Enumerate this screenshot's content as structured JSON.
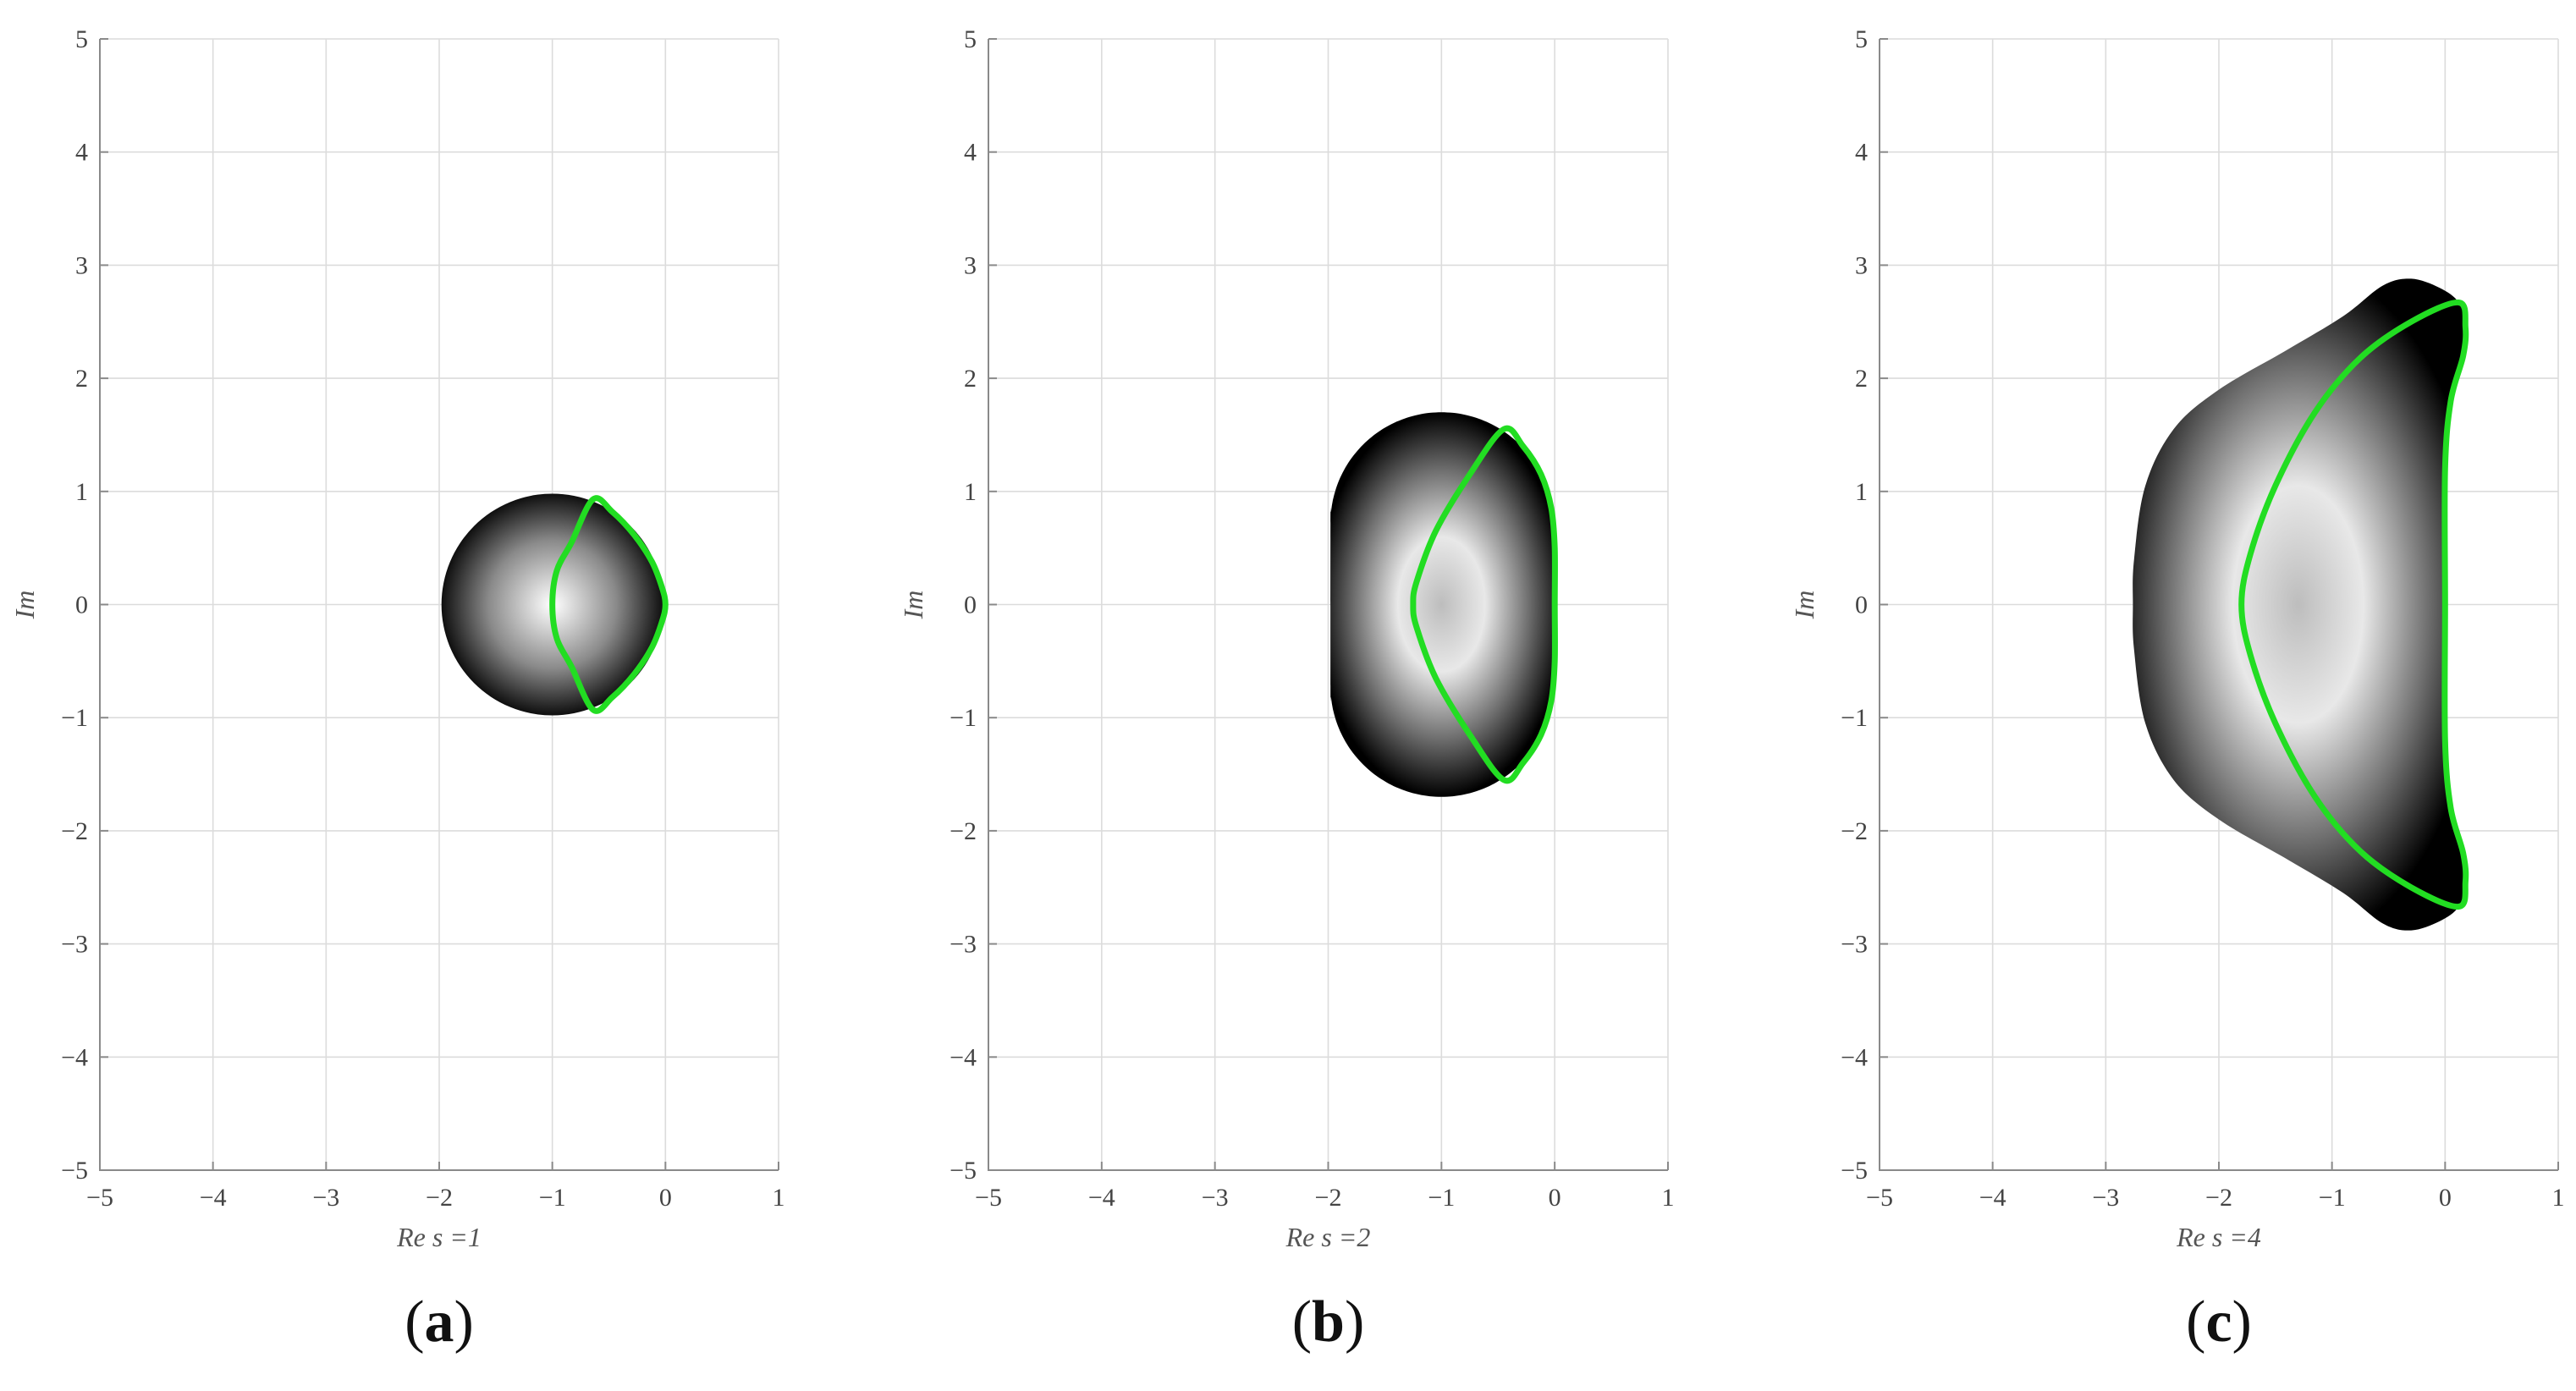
{
  "colors": {
    "curve": "#22dd22",
    "region_dark": "#000000",
    "region_light": "#ffffff",
    "grid": "#dcdcdc"
  },
  "chart_data": [
    {
      "type": "line",
      "panel_label": "a",
      "xlabel": "Re s =1",
      "ylabel": "Im",
      "xlim": [
        -5,
        1
      ],
      "ylim": [
        -5,
        5
      ],
      "xticks": [
        -5,
        -4,
        -3,
        -2,
        -1,
        0,
        1
      ],
      "yticks": [
        -5,
        -4,
        -3,
        -2,
        -1,
        0,
        1,
        2,
        3,
        4,
        5
      ],
      "grid": true,
      "shaded_region": {
        "shape": "disk",
        "center": [
          -1,
          0
        ],
        "radius": 0.98
      },
      "series": [
        {
          "values": [
            [
              -0.64,
              0.93
            ],
            [
              -0.47,
              0.82
            ],
            [
              -0.28,
              0.62
            ],
            [
              -0.12,
              0.38
            ],
            [
              -0.03,
              0.15
            ],
            [
              0.0,
              0.0
            ],
            [
              -0.03,
              -0.15
            ],
            [
              -0.12,
              -0.38
            ],
            [
              -0.28,
              -0.62
            ],
            [
              -0.47,
              -0.82
            ],
            [
              -0.64,
              -0.93
            ],
            [
              -0.83,
              -0.55
            ],
            [
              -0.96,
              -0.3
            ],
            [
              -1.0,
              0.0
            ],
            [
              -0.96,
              0.3
            ],
            [
              -0.83,
              0.55
            ],
            [
              -0.64,
              0.93
            ]
          ]
        }
      ]
    },
    {
      "type": "line",
      "panel_label": "b",
      "xlabel": "Re s =2",
      "ylabel": "Im",
      "xlim": [
        -5,
        1
      ],
      "ylim": [
        -5,
        5
      ],
      "xticks": [
        -5,
        -4,
        -3,
        -2,
        -1,
        0,
        1
      ],
      "yticks": [
        -5,
        -4,
        -3,
        -2,
        -1,
        0,
        1,
        2,
        3,
        4,
        5
      ],
      "grid": true,
      "shaded_region": {
        "shape": "stadium",
        "center": [
          -1,
          0
        ],
        "radius": 0.98,
        "half_length": 0.72
      },
      "series": [
        {
          "values": [
            [
              -0.45,
              1.55
            ],
            [
              -0.28,
              1.4
            ],
            [
              -0.12,
              1.15
            ],
            [
              -0.03,
              0.85
            ],
            [
              0.0,
              0.5
            ],
            [
              0.0,
              0.0
            ],
            [
              0.0,
              -0.5
            ],
            [
              -0.03,
              -0.85
            ],
            [
              -0.12,
              -1.15
            ],
            [
              -0.28,
              -1.4
            ],
            [
              -0.45,
              -1.55
            ],
            [
              -0.75,
              -1.15
            ],
            [
              -1.05,
              -0.65
            ],
            [
              -1.22,
              -0.2
            ],
            [
              -1.25,
              0.0
            ],
            [
              -1.22,
              0.2
            ],
            [
              -1.05,
              0.65
            ],
            [
              -0.75,
              1.15
            ],
            [
              -0.45,
              1.55
            ]
          ]
        }
      ]
    },
    {
      "type": "line",
      "panel_label": "c",
      "xlabel": "Re s =4",
      "ylabel": "Im",
      "xlim": [
        -5,
        1
      ],
      "ylim": [
        -5,
        5
      ],
      "xticks": [
        -5,
        -4,
        -3,
        -2,
        -1,
        0,
        1
      ],
      "yticks": [
        -5,
        -4,
        -3,
        -2,
        -1,
        0,
        1,
        2,
        3,
        4,
        5
      ],
      "grid": true,
      "shaded_region": {
        "shape": "boundary",
        "values": [
          [
            0.12,
            2.67
          ],
          [
            0.18,
            2.45
          ],
          [
            0.16,
            2.2
          ],
          [
            0.05,
            1.8
          ],
          [
            0.0,
            1.2
          ],
          [
            0.0,
            0.0
          ],
          [
            0.0,
            -1.2
          ],
          [
            0.05,
            -1.8
          ],
          [
            0.16,
            -2.2
          ],
          [
            0.18,
            -2.45
          ],
          [
            0.12,
            -2.67
          ],
          [
            -0.05,
            -2.8
          ],
          [
            -0.3,
            -2.88
          ],
          [
            -0.55,
            -2.82
          ],
          [
            -0.9,
            -2.55
          ],
          [
            -1.4,
            -2.25
          ],
          [
            -2.0,
            -1.9
          ],
          [
            -2.4,
            -1.55
          ],
          [
            -2.65,
            -1.05
          ],
          [
            -2.75,
            -0.4
          ],
          [
            -2.76,
            0.0
          ],
          [
            -2.75,
            0.4
          ],
          [
            -2.65,
            1.05
          ],
          [
            -2.4,
            1.55
          ],
          [
            -2.0,
            1.9
          ],
          [
            -1.4,
            2.25
          ],
          [
            -0.9,
            2.55
          ],
          [
            -0.55,
            2.82
          ],
          [
            -0.3,
            2.88
          ],
          [
            -0.05,
            2.8
          ],
          [
            0.12,
            2.67
          ]
        ]
      },
      "series": [
        {
          "values": [
            [
              0.12,
              2.67
            ],
            [
              0.18,
              2.45
            ],
            [
              0.16,
              2.2
            ],
            [
              0.05,
              1.8
            ],
            [
              0.0,
              1.2
            ],
            [
              0.0,
              0.0
            ],
            [
              0.0,
              -1.2
            ],
            [
              0.05,
              -1.8
            ],
            [
              0.16,
              -2.2
            ],
            [
              0.18,
              -2.45
            ],
            [
              0.12,
              -2.67
            ],
            [
              -0.3,
              -2.5
            ],
            [
              -0.75,
              -2.18
            ],
            [
              -1.15,
              -1.7
            ],
            [
              -1.5,
              -1.05
            ],
            [
              -1.72,
              -0.45
            ],
            [
              -1.8,
              0.0
            ],
            [
              -1.72,
              0.45
            ],
            [
              -1.5,
              1.05
            ],
            [
              -1.15,
              1.7
            ],
            [
              -0.75,
              2.18
            ],
            [
              -0.3,
              2.5
            ],
            [
              0.12,
              2.67
            ]
          ]
        }
      ]
    }
  ]
}
